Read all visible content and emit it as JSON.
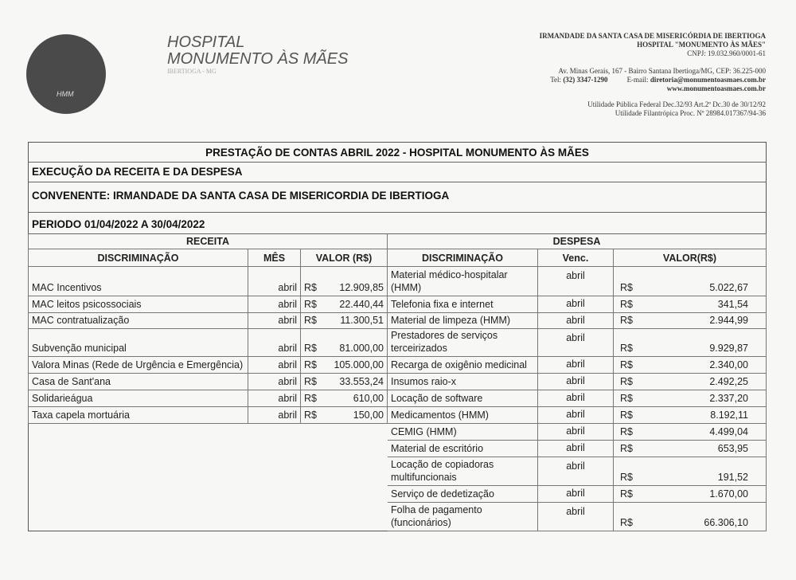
{
  "header": {
    "logo_text": "HMM",
    "hospital_line1": "HOSPITAL",
    "hospital_line2": "MONUMENTO ÀS MÃES",
    "city": "IBERTIOGA - MG",
    "org": "IRMANDADE DA SANTA CASA DE MISERICÓRDIA DE IBERTIOGA",
    "hospital_quoted": "HOSPITAL \"MONUMENTO ÀS MÃES\"",
    "cnpj": "CNPJ: 19.032.960/0001-61",
    "address": "Av. Minas Gerais, 167 - Bairro Santana  Ibertioga/MG, CEP: 36.225-000",
    "tel_label": "Tel: ",
    "tel": "(32) 3347-1290",
    "email_label": "E-mail: ",
    "email": "diretoria@monumentoasmaes.com.br",
    "website": "www.monumentoasmaes.com.br",
    "utilidade1": "Utilidade Pública Federal Dec.32/93 Art.2º Dc.30 de 30/12/92",
    "utilidade2": "Utilidade Filantrópica Proc. Nº 28984.017367/94-36"
  },
  "report": {
    "title": "PRESTAÇÃO DE CONTAS ABRIL 2022 - HOSPITAL MONUMENTO ÀS MÃES",
    "execucao": "EXECUÇÃO DA RECEITA E DA DESPESA",
    "convenente": "CONVENENTE: IRMANDADE DA SANTA CASA DE MISERICORDIA DE IBERTIOGA",
    "periodo": "PERIODO 01/04/2022 A 30/04/2022"
  },
  "receita": {
    "heading": "RECEITA",
    "columns": [
      "DISCRIMINAÇÃO",
      "MÊS",
      "VALOR (R$)"
    ],
    "rows": [
      {
        "desc": "MAC Incentivos",
        "mes": "abril",
        "cur": "R$",
        "valor": "12.909,85"
      },
      {
        "desc": "MAC leitos psicossociais",
        "mes": "abril",
        "cur": "R$",
        "valor": "22.440,44"
      },
      {
        "desc": "MAC contratualização",
        "mes": "abril",
        "cur": "R$",
        "valor": "11.300,51"
      },
      {
        "desc": "Subvenção municipal",
        "mes": "abril",
        "cur": "R$",
        "valor": "81.000,00"
      },
      {
        "desc": "Valora Minas (Rede de Urgência e Emergência)",
        "mes": "abril",
        "cur": "R$",
        "valor": "105.000,00"
      },
      {
        "desc": "Casa de Sant'ana",
        "mes": "abril",
        "cur": "R$",
        "valor": "33.553,24"
      },
      {
        "desc": "Solidarieágua",
        "mes": "abril",
        "cur": "R$",
        "valor": "610,00"
      },
      {
        "desc": "Taxa capela mortuária",
        "mes": "abril",
        "cur": "R$",
        "valor": "150,00"
      }
    ]
  },
  "despesa": {
    "heading": "DESPESA",
    "columns": [
      "DISCRIMINAÇÃO",
      "Venc.",
      "VALOR(R$)"
    ],
    "rows": [
      {
        "desc": "Material médico-hospitalar (HMM)",
        "venc": "abril",
        "cur": "R$",
        "valor": "5.022,67"
      },
      {
        "desc": "Telefonia fixa e internet",
        "venc": "abril",
        "cur": "R$",
        "valor": "341,54"
      },
      {
        "desc": "Material de limpeza (HMM)",
        "venc": "abril",
        "cur": "R$",
        "valor": "2.944,99"
      },
      {
        "desc": "Prestadores de serviços terceirizados",
        "venc": "abril",
        "cur": "R$",
        "valor": "9.929,87"
      },
      {
        "desc": "Recarga de oxigênio medicinal",
        "venc": "abril",
        "cur": "R$",
        "valor": "2.340,00"
      },
      {
        "desc": "Insumos raio-x",
        "venc": "abril",
        "cur": "R$",
        "valor": "2.492,25"
      },
      {
        "desc": "Locação de software",
        "venc": "abril",
        "cur": "R$",
        "valor": "2.337,20"
      },
      {
        "desc": "Medicamentos (HMM)",
        "venc": "abril",
        "cur": "R$",
        "valor": "8.192,11"
      },
      {
        "desc": "CEMIG (HMM)",
        "venc": "abril",
        "cur": "R$",
        "valor": "4.499,04"
      },
      {
        "desc": "Material de escritório",
        "venc": "abril",
        "cur": "R$",
        "valor": "653,95"
      },
      {
        "desc": "Locação de copiadoras multifuncionais",
        "venc": "abril",
        "cur": "R$",
        "valor": "191,52"
      },
      {
        "desc": "Serviço de dedetização",
        "venc": "abril",
        "cur": "R$",
        "valor": "1.670,00"
      },
      {
        "desc": "Folha de pagamento (funcionários)",
        "venc": "abril",
        "cur": "R$",
        "valor": "66.306,10"
      }
    ]
  }
}
